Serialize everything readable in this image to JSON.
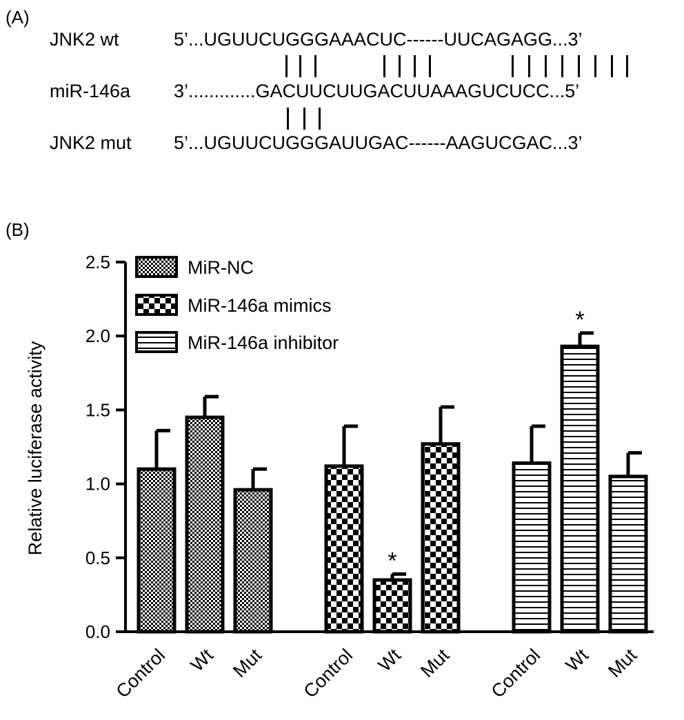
{
  "panel_a": {
    "label": "(A)",
    "rows": [
      {
        "name": "JNK2 wt",
        "sequence": "5’...UGUUCUGGGAAACUC------UUCAGAGG...3’"
      },
      {
        "name": "miR-146a",
        "sequence": "3’.............GACUUCUUGACUUAAAGUCUCC...5’"
      },
      {
        "name": "JNK2 mut",
        "sequence": "5’...UGUUCUGGGAUUGAC------AAGUCGAC...3’"
      }
    ]
  },
  "panel_b": {
    "label": "(B)"
  },
  "chart_data": {
    "type": "bar",
    "ylabel": "Relative luciferase activity",
    "xlabel": "",
    "ylim": [
      0,
      2.5
    ],
    "yticks": [
      "0.0",
      "0.5",
      "1.0",
      "1.5",
      "2.0",
      "2.5"
    ],
    "grid": false,
    "legend_position": "top-left",
    "significance_marker": "*",
    "groups": [
      {
        "series": "MiR-NC",
        "pattern": "fine-checker",
        "bars": [
          {
            "category": "Control",
            "value": 1.1,
            "error": 0.26
          },
          {
            "category": "Wt",
            "value": 1.45,
            "error": 0.14
          },
          {
            "category": "Mut",
            "value": 0.96,
            "error": 0.14
          }
        ]
      },
      {
        "series": "MiR-146a mimics",
        "pattern": "coarse-checker",
        "bars": [
          {
            "category": "Control",
            "value": 1.12,
            "error": 0.27
          },
          {
            "category": "Wt",
            "value": 0.35,
            "error": 0.04,
            "significant": true
          },
          {
            "category": "Mut",
            "value": 1.27,
            "error": 0.25
          }
        ]
      },
      {
        "series": "MiR-146a inhibitor",
        "pattern": "horizontal-stripes",
        "bars": [
          {
            "category": "Control",
            "value": 1.14,
            "error": 0.25
          },
          {
            "category": "Wt",
            "value": 1.93,
            "error": 0.09,
            "significant": true
          },
          {
            "category": "Mut",
            "value": 1.05,
            "error": 0.16
          }
        ]
      }
    ]
  }
}
